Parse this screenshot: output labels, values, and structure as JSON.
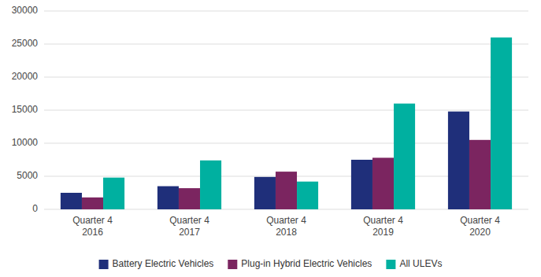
{
  "chart_data": {
    "type": "bar",
    "categories": [
      "Quarter 4\n2016",
      "Quarter 4\n2017",
      "Quarter 4\n2018",
      "Quarter 4\n2019",
      "Quarter 4\n2020"
    ],
    "series": [
      {
        "name": "Battery Electric Vehicles",
        "color": "#1f2f7a",
        "values": [
          2500,
          3500,
          4900,
          7500,
          14800
        ]
      },
      {
        "name": "Plug-in Hybrid Electric Vehicles",
        "color": "#7b2560",
        "values": [
          1800,
          3200,
          5700,
          7800,
          10500
        ]
      },
      {
        "name": "All ULEVs",
        "color": "#00b0a0",
        "values": [
          4800,
          7400,
          4200,
          16000,
          26000
        ]
      }
    ],
    "ylim": [
      0,
      30000
    ],
    "yticks": [
      0,
      5000,
      10000,
      15000,
      20000,
      25000,
      30000
    ],
    "grid": true,
    "legend": "bottom"
  }
}
